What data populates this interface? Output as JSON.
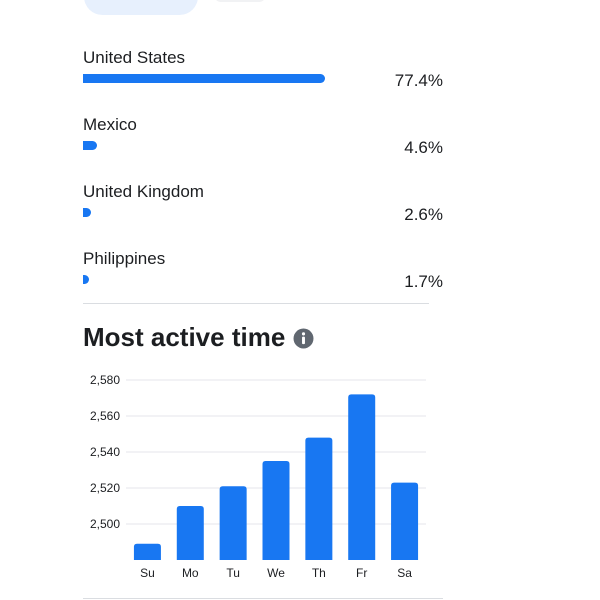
{
  "colors": {
    "accent": "#1877f2",
    "divider": "#dadde1",
    "text": "#1c1e21"
  },
  "countries": [
    {
      "name": "United States",
      "percent_label": "77.4%",
      "percent": 77.4
    },
    {
      "name": "Mexico",
      "percent_label": "4.6%",
      "percent": 4.6
    },
    {
      "name": "United Kingdom",
      "percent_label": "2.6%",
      "percent": 2.6
    },
    {
      "name": "Philippines",
      "percent_label": "1.7%",
      "percent": 1.7
    }
  ],
  "most_active": {
    "title": "Most active time",
    "info_icon": "info-icon"
  },
  "chart_data": {
    "type": "bar",
    "categories": [
      "Su",
      "Mo",
      "Tu",
      "We",
      "Th",
      "Fr",
      "Sa"
    ],
    "values": [
      2489,
      2510,
      2521,
      2535,
      2548,
      2572,
      2523
    ],
    "yticks": [
      "2,500",
      "2,520",
      "2,540",
      "2,560",
      "2,580"
    ],
    "ytick_values": [
      2500,
      2520,
      2540,
      2560,
      2580
    ],
    "ylim": [
      2480,
      2580
    ],
    "grid": true,
    "color": "#1877f2"
  }
}
